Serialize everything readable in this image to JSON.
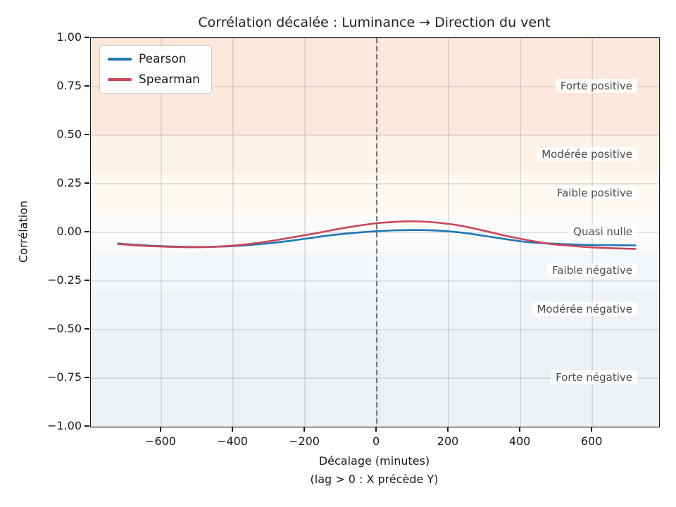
{
  "title": "Corrélation décalée : Luminance → Direction du vent",
  "axes": {
    "ylabel": "Corrélation",
    "xlabel_line1": "Décalage (minutes)",
    "xlabel_line2": "(lag > 0 : X précède Y)"
  },
  "legend": {
    "items": [
      {
        "label": "Pearson",
        "color": "#1f77b4"
      },
      {
        "label": "Spearman",
        "color": "#cb4557"
      }
    ]
  },
  "chart_data": {
    "type": "line",
    "title": "Corrélation décalée : Luminance → Direction du vent",
    "xlabel": "Décalage (minutes)",
    "xlabel_note": "(lag > 0 : X précède Y)",
    "ylabel": "Corrélation",
    "xlim": [
      -796,
      786
    ],
    "ylim": [
      -1,
      1
    ],
    "grid": true,
    "legend_position": "upper left",
    "x": [
      -720,
      -660,
      -600,
      -540,
      -480,
      -420,
      -360,
      -300,
      -240,
      -180,
      -120,
      -60,
      0,
      60,
      120,
      180,
      240,
      300,
      360,
      420,
      480,
      540,
      600,
      660,
      720
    ],
    "series": [
      {
        "name": "Pearson",
        "color": "#1f77b4",
        "values": [
          -0.057,
          -0.065,
          -0.071,
          -0.074,
          -0.075,
          -0.072,
          -0.066,
          -0.056,
          -0.043,
          -0.028,
          -0.013,
          -0.002,
          0.006,
          0.011,
          0.012,
          0.008,
          -0.002,
          -0.018,
          -0.035,
          -0.05,
          -0.057,
          -0.062,
          -0.065,
          -0.066,
          -0.067
        ]
      },
      {
        "name": "Spearman",
        "color": "#cb4557",
        "values": [
          -0.06,
          -0.068,
          -0.073,
          -0.076,
          -0.076,
          -0.071,
          -0.061,
          -0.046,
          -0.027,
          -0.008,
          0.013,
          0.032,
          0.047,
          0.055,
          0.056,
          0.048,
          0.032,
          0.008,
          -0.018,
          -0.04,
          -0.059,
          -0.069,
          -0.077,
          -0.082,
          -0.085
        ]
      }
    ],
    "xticks": [
      -600,
      -400,
      -200,
      0,
      200,
      400,
      600
    ],
    "xtick_labels": [
      "−600",
      "−400",
      "−200",
      "0",
      "200",
      "400",
      "600"
    ],
    "yticks": [
      1.0,
      0.75,
      0.5,
      0.25,
      0.0,
      -0.25,
      -0.5,
      -0.75,
      -1.0
    ],
    "ytick_labels": [
      "1.00",
      "0.75",
      "0.50",
      "0.25",
      "0.00",
      "−0.25",
      "−0.50",
      "−0.75",
      "−1.00"
    ],
    "vline": {
      "x": 0,
      "style": "dashed",
      "color": "#4d4d4d"
    },
    "zones": [
      {
        "from": 0.5,
        "to": 1.0,
        "color": "#fbe8da"
      },
      {
        "from": 0.3,
        "to": 0.5,
        "color": "#fdf2e7"
      },
      {
        "from": 0.1,
        "to": 0.3,
        "color": "#fdf8f1"
      },
      {
        "from": 0.0,
        "to": 0.1,
        "color": "#fcfbf9"
      },
      {
        "from": -0.1,
        "to": 0.0,
        "color": "#f9fafb"
      },
      {
        "from": -0.3,
        "to": -0.1,
        "color": "#f4f7fa"
      },
      {
        "from": -0.5,
        "to": -0.3,
        "color": "#f0f4f8"
      },
      {
        "from": -1.0,
        "to": -0.5,
        "color": "#ecf1f6"
      }
    ],
    "zone_labels": [
      {
        "text": "Forte positive",
        "at": 0.75
      },
      {
        "text": "Modérée positive",
        "at": 0.4
      },
      {
        "text": "Faible positive",
        "at": 0.2
      },
      {
        "text": "Quasi nulle",
        "at": 0.0
      },
      {
        "text": "Faible négative",
        "at": -0.2
      },
      {
        "text": "Modérée négative",
        "at": -0.4
      },
      {
        "text": "Forte négative",
        "at": -0.75
      }
    ]
  }
}
